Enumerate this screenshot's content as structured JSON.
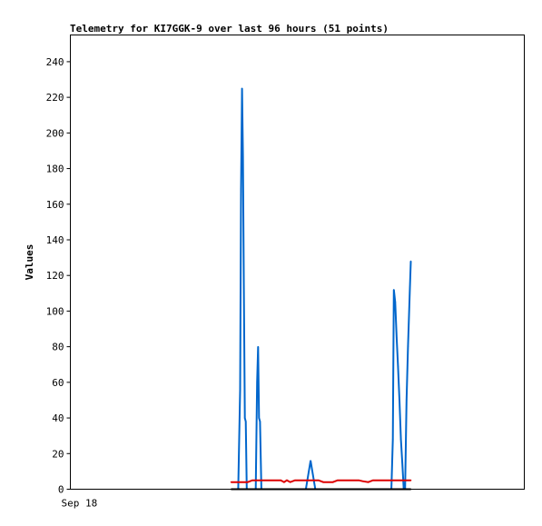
{
  "chart_data": {
    "type": "line",
    "title": "Telemetry for KI7GGK-9 over last 96 hours (51 points)",
    "xlabel": "",
    "ylabel": "Values",
    "x_tick_labels": [
      "Sep 18"
    ],
    "y_ticks": [
      0,
      20,
      40,
      60,
      80,
      100,
      120,
      140,
      160,
      180,
      200,
      220,
      240
    ],
    "xlim": [
      0,
      96
    ],
    "ylim": [
      0,
      255
    ],
    "grid": false,
    "legend": "none",
    "series": [
      {
        "color": "#0066cc",
        "x": [
          35.5,
          35.9,
          36.1,
          36.3,
          36.5,
          36.7,
          36.9,
          37.1,
          37.3,
          39.2,
          39.5,
          39.7,
          39.9,
          40.1,
          40.4,
          49.8,
          50.8,
          51.8,
          67.9,
          68.2,
          68.4,
          68.7,
          69.0,
          69.3,
          69.6,
          69.9,
          70.2,
          70.5,
          70.8,
          71.1,
          71.4,
          71.8,
          72.0
        ],
        "y": [
          0,
          56,
          168,
          225,
          187,
          113,
          40,
          38,
          0,
          0,
          60,
          80,
          40,
          38,
          0,
          0,
          16,
          0,
          0,
          28,
          112,
          105,
          85,
          69,
          50,
          28,
          15,
          0,
          0,
          50,
          80,
          113,
          128
        ]
      },
      {
        "color": "#dd0000",
        "x": [
          34.0,
          37.5,
          38.5,
          44.5,
          45.2,
          45.8,
          46.5,
          47.5,
          52.5,
          53.5,
          55.5,
          56.5,
          61.0,
          61.8,
          63.0,
          64.0,
          72.0
        ],
        "y": [
          4,
          4,
          5,
          5,
          4,
          5,
          4,
          5,
          5,
          4,
          4,
          5,
          5,
          4.5,
          4,
          5,
          5
        ]
      },
      {
        "color": "#000000",
        "x": [
          34.0,
          72.0
        ],
        "y": [
          0,
          0
        ]
      }
    ]
  }
}
